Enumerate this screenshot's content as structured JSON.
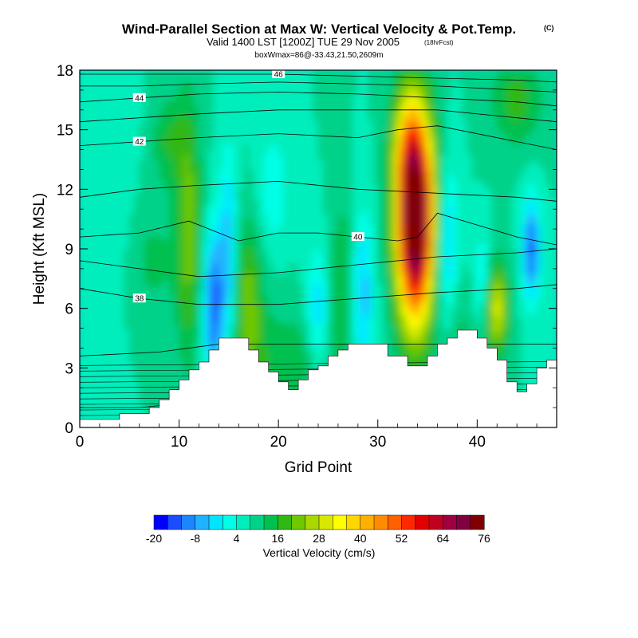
{
  "chart_data": {
    "type": "contour",
    "title": "Wind-Parallel Section at Max W: Vertical Velocity & Pot.Temp.",
    "title_mark": "(C)",
    "subtitle": "Valid 1400 LST [1200Z] TUE 29 Nov 2005",
    "subtitle_note": "(18hrFcst)",
    "subsubtitle": "boxWmax=86@-33.43,21.50,2609m",
    "xlabel": "Grid Point",
    "ylabel": "Height (Kft MSL)",
    "xlim": [
      0,
      48
    ],
    "ylim": [
      0,
      18
    ],
    "xticks": [
      0,
      10,
      20,
      30,
      40
    ],
    "yticks": [
      0,
      3,
      6,
      9,
      12,
      15,
      18
    ],
    "colorbar": {
      "label": "Vertical Velocity (cm/s)",
      "min": -20,
      "max": 76,
      "step": 4,
      "tick_labels": [
        "-20",
        "-8",
        "4",
        "16",
        "28",
        "40",
        "52",
        "64",
        "76"
      ],
      "colors": [
        "#0000ff",
        "#1c4cff",
        "#1c86ff",
        "#20b2ff",
        "#00e6ff",
        "#00ffe6",
        "#00eebb",
        "#00d28a",
        "#00c050",
        "#30b814",
        "#70c800",
        "#a8d800",
        "#d8e800",
        "#ffff00",
        "#ffd700",
        "#ffb000",
        "#ff8c00",
        "#ff6000",
        "#ff2800",
        "#e00000",
        "#c00020",
        "#a00040",
        "#800040",
        "#800000"
      ]
    },
    "terrain_kft": [
      0.4,
      0.4,
      0.4,
      0.4,
      0.7,
      0.7,
      0.7,
      1.0,
      1.4,
      1.9,
      2.4,
      2.9,
      3.3,
      3.9,
      4.5,
      4.5,
      4.5,
      3.9,
      3.3,
      2.8,
      2.3,
      1.9,
      2.4,
      2.9,
      3.1,
      3.6,
      3.9,
      4.2,
      4.2,
      4.2,
      4.2,
      3.6,
      3.6,
      3.1,
      3.1,
      3.6,
      4.2,
      4.5,
      4.9,
      4.9,
      4.5,
      4.0,
      3.4,
      2.3,
      1.8,
      2.2,
      3.0,
      3.4
    ],
    "series": [
      {
        "name": "theta_36",
        "label": "",
        "points": [
          [
            0,
            1.0
          ],
          [
            6,
            1.0
          ],
          [
            12,
            1.3
          ],
          [
            17,
            1.6
          ],
          [
            48,
            1.6
          ]
        ]
      },
      {
        "name": "theta_37",
        "label": "",
        "points": [
          [
            0,
            3.6
          ],
          [
            8,
            3.8
          ],
          [
            14,
            4.2
          ],
          [
            48,
            4.2
          ]
        ]
      },
      {
        "name": "theta_38",
        "label": "38",
        "points": [
          [
            0,
            7.0
          ],
          [
            6,
            6.5
          ],
          [
            12,
            6.2
          ],
          [
            20,
            6.2
          ],
          [
            28,
            6.5
          ],
          [
            36,
            6.8
          ],
          [
            44,
            7.0
          ],
          [
            48,
            7.2
          ]
        ]
      },
      {
        "name": "theta_39",
        "label": "",
        "points": [
          [
            0,
            8.4
          ],
          [
            6,
            8.0
          ],
          [
            12,
            7.6
          ],
          [
            20,
            7.8
          ],
          [
            28,
            8.2
          ],
          [
            36,
            8.6
          ],
          [
            44,
            8.8
          ],
          [
            48,
            9.0
          ]
        ]
      },
      {
        "name": "theta_40",
        "label": "40",
        "points": [
          [
            0,
            9.6
          ],
          [
            6,
            9.8
          ],
          [
            11,
            10.4
          ],
          [
            16,
            9.4
          ],
          [
            20,
            9.8
          ],
          [
            24,
            9.8
          ],
          [
            28,
            9.6
          ],
          [
            32,
            9.4
          ],
          [
            34,
            9.6
          ],
          [
            36,
            10.8
          ],
          [
            40,
            10.2
          ],
          [
            44,
            9.6
          ],
          [
            48,
            9.2
          ]
        ]
      },
      {
        "name": "theta_41",
        "label": "",
        "points": [
          [
            0,
            11.6
          ],
          [
            6,
            12.0
          ],
          [
            12,
            12.2
          ],
          [
            20,
            12.4
          ],
          [
            28,
            12.0
          ],
          [
            36,
            11.8
          ],
          [
            44,
            11.6
          ],
          [
            48,
            11.4
          ]
        ]
      },
      {
        "name": "theta_42",
        "label": "42",
        "points": [
          [
            0,
            14.2
          ],
          [
            6,
            14.4
          ],
          [
            12,
            14.6
          ],
          [
            20,
            14.8
          ],
          [
            28,
            14.6
          ],
          [
            32,
            15.0
          ],
          [
            36,
            15.2
          ],
          [
            44,
            14.4
          ],
          [
            48,
            14.0
          ]
        ]
      },
      {
        "name": "theta_43",
        "label": "",
        "points": [
          [
            0,
            15.4
          ],
          [
            6,
            15.6
          ],
          [
            12,
            15.8
          ],
          [
            20,
            16.0
          ],
          [
            28,
            16.0
          ],
          [
            36,
            16.0
          ],
          [
            44,
            15.6
          ],
          [
            48,
            15.4
          ]
        ]
      },
      {
        "name": "theta_44",
        "label": "44",
        "points": [
          [
            0,
            16.4
          ],
          [
            6,
            16.6
          ],
          [
            12,
            16.8
          ],
          [
            20,
            16.9
          ],
          [
            28,
            16.8
          ],
          [
            36,
            16.6
          ],
          [
            44,
            16.4
          ],
          [
            48,
            16.2
          ]
        ]
      },
      {
        "name": "theta_45",
        "label": "",
        "points": [
          [
            0,
            17.2
          ],
          [
            6,
            17.2
          ],
          [
            12,
            17.3
          ],
          [
            20,
            17.4
          ],
          [
            28,
            17.3
          ],
          [
            36,
            17.2
          ],
          [
            44,
            17.0
          ],
          [
            48,
            16.9
          ]
        ]
      },
      {
        "name": "theta_46",
        "label": "46",
        "points": [
          [
            0,
            17.8
          ],
          [
            6,
            17.8
          ],
          [
            12,
            17.8
          ],
          [
            20,
            17.8
          ],
          [
            28,
            17.7
          ],
          [
            36,
            17.6
          ],
          [
            44,
            17.5
          ],
          [
            48,
            17.4
          ]
        ]
      }
    ],
    "updraft_max": {
      "x": 33.6,
      "y": 10.6,
      "value": 76
    }
  }
}
